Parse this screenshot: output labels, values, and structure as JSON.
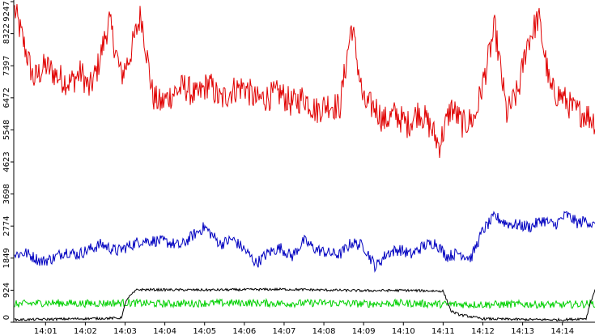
{
  "chart_data": {
    "type": "line",
    "title": "",
    "xlabel": "",
    "ylabel": "",
    "y_ticks": [
      "0",
      "924",
      "1849",
      "2774",
      "3698",
      "4623",
      "5548",
      "6472",
      "7397",
      "8322",
      "9247"
    ],
    "ylim": [
      0,
      9247
    ],
    "x_ticks": [
      "14:01",
      "14:02",
      "14:03",
      "14:04",
      "14:05",
      "14:06",
      "14:07",
      "14:08",
      "14:09",
      "14:10",
      "14:11",
      "14:12",
      "14:13",
      "14:14"
    ],
    "x_tick_positions_min": [
      1,
      2,
      3,
      4,
      5,
      6,
      7,
      8,
      9,
      10,
      11,
      12,
      13,
      14
    ],
    "xlim_min": [
      0.2,
      14.82
    ],
    "grid": false,
    "legend": "none",
    "series": [
      {
        "color": "#e00000",
        "x_min": [
          0.2,
          0.7,
          1.0,
          1.3,
          1.6,
          1.9,
          2.1,
          2.3,
          2.6,
          2.9,
          3.1,
          3.4,
          3.7,
          3.9,
          4.2,
          4.5,
          4.8,
          5.1,
          5.4,
          5.7,
          6.0,
          6.3,
          6.6,
          6.9,
          7.2,
          7.5,
          7.8,
          8.1,
          8.4,
          8.7,
          9.0,
          9.3,
          9.5,
          9.8,
          10.1,
          10.4,
          10.7,
          10.9,
          11.2,
          11.5,
          11.8,
          12.1,
          12.3,
          12.6,
          12.9,
          13.1,
          13.4,
          13.7,
          14.0,
          14.3,
          14.6,
          14.82
        ],
        "values": [
          9100,
          7000,
          7400,
          7100,
          6900,
          7200,
          6700,
          7300,
          8700,
          7100,
          7600,
          8900,
          6500,
          6300,
          6600,
          6800,
          6500,
          6900,
          6400,
          6700,
          6800,
          6400,
          6500,
          6600,
          6300,
          6500,
          6100,
          6300,
          6200,
          8600,
          6300,
          6200,
          5800,
          6000,
          5700,
          6100,
          5600,
          5100,
          6200,
          5700,
          5900,
          7400,
          8500,
          6000,
          6700,
          8000,
          8800,
          6700,
          6500,
          6100,
          6000,
          5800
        ],
        "amplitude": 420
      },
      {
        "color": "#0000c0",
        "x_min": [
          0.2,
          0.5,
          0.9,
          1.2,
          1.5,
          1.8,
          2.1,
          2.4,
          2.8,
          3.1,
          3.4,
          3.8,
          4.1,
          4.4,
          4.7,
          5.0,
          5.4,
          5.7,
          6.0,
          6.3,
          6.6,
          6.9,
          7.2,
          7.5,
          7.8,
          8.1,
          8.4,
          8.7,
          9.0,
          9.3,
          9.6,
          9.9,
          10.2,
          10.5,
          10.8,
          11.1,
          11.4,
          11.7,
          12.0,
          12.3,
          12.6,
          12.9,
          13.2,
          13.5,
          13.8,
          14.1,
          14.4,
          14.6,
          14.82
        ],
        "values": [
          1950,
          2000,
          1750,
          1850,
          2050,
          1950,
          2100,
          2250,
          2050,
          2200,
          2350,
          2350,
          2300,
          2200,
          2500,
          2750,
          2250,
          2400,
          2100,
          1700,
          2000,
          2150,
          1900,
          2350,
          2100,
          2000,
          1950,
          2300,
          2200,
          1600,
          2000,
          2100,
          1950,
          2200,
          2300,
          1900,
          2000,
          1850,
          2650,
          3050,
          2850,
          2800,
          2750,
          2950,
          2800,
          3100,
          2850,
          2950,
          2750
        ],
        "amplitude": 170
      },
      {
        "color": "#00d000",
        "x_min": [
          0.2,
          1.0,
          2.0,
          3.0,
          4.0,
          5.0,
          6.0,
          7.0,
          8.0,
          9.0,
          10.0,
          11.0,
          12.0,
          13.0,
          14.0,
          14.82
        ],
        "values": [
          520,
          560,
          540,
          560,
          530,
          550,
          560,
          540,
          560,
          530,
          550,
          520,
          510,
          520,
          500,
          540
        ],
        "amplitude": 110
      },
      {
        "color": "#000000",
        "x_min": [
          0.2,
          2.9,
          3.05,
          3.3,
          5.0,
          7.0,
          9.0,
          10.0,
          11.0,
          11.2,
          11.4,
          12.0,
          13.0,
          14.0,
          14.6,
          14.7,
          14.82
        ],
        "values": [
          70,
          120,
          680,
          940,
          930,
          950,
          910,
          920,
          900,
          320,
          220,
          100,
          80,
          70,
          110,
          560,
          920
        ],
        "amplitude": 35
      }
    ]
  }
}
